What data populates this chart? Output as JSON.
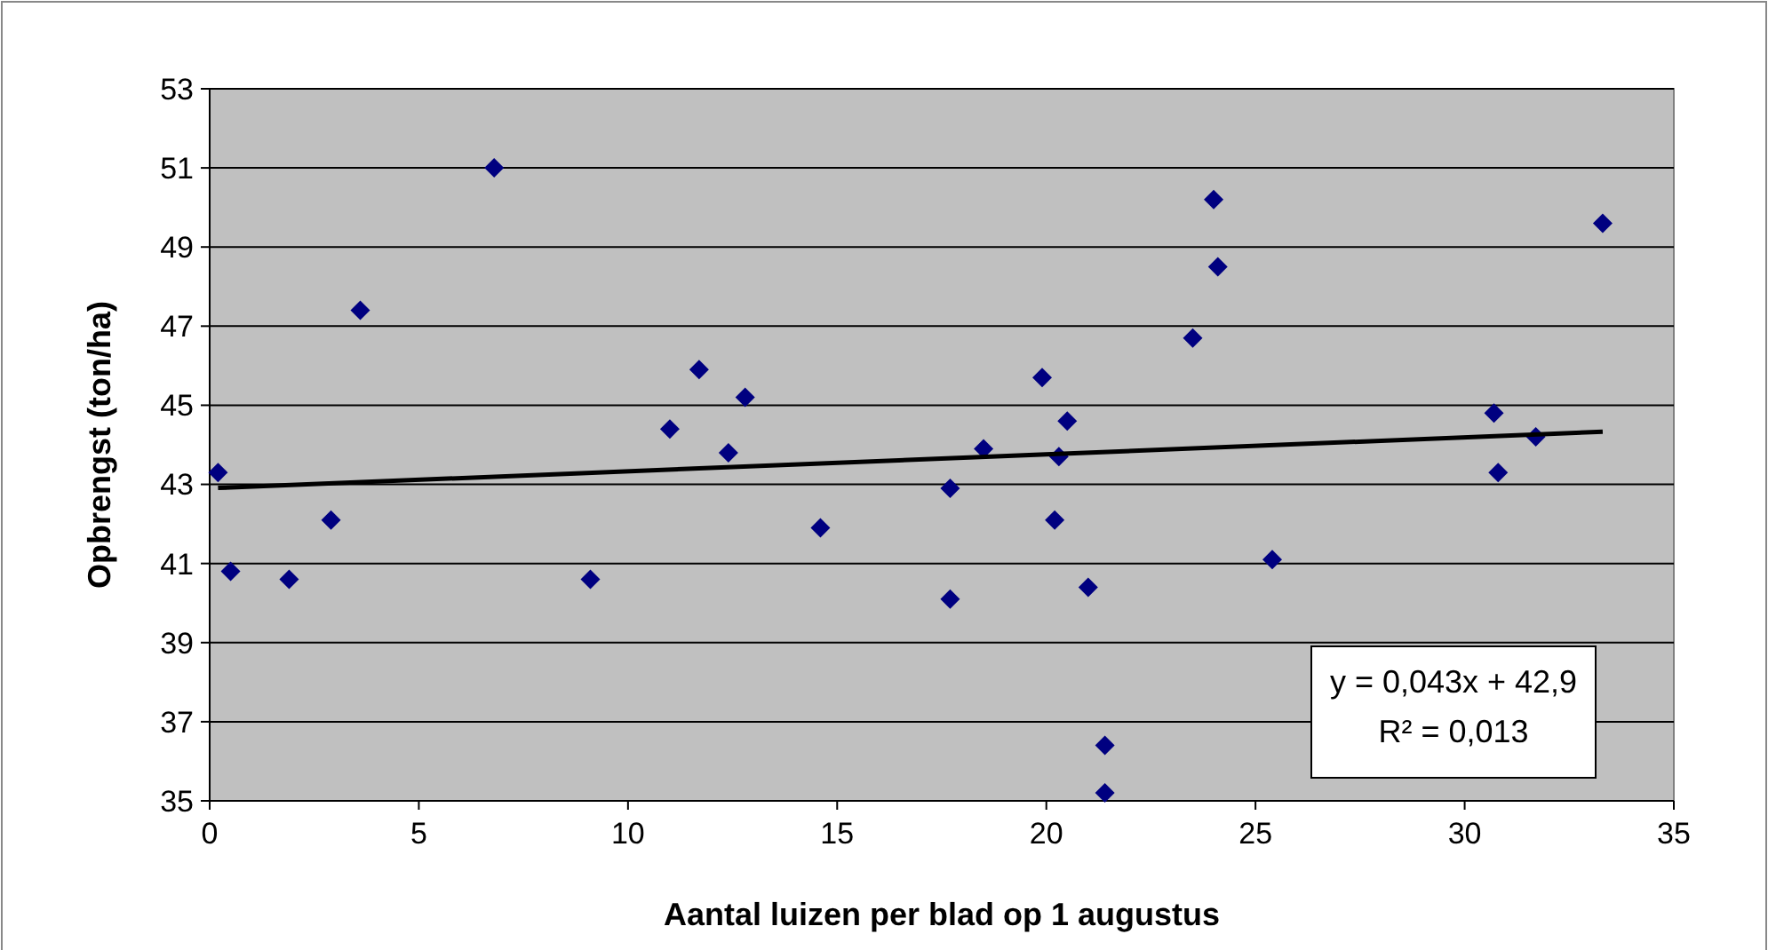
{
  "chart_data": {
    "type": "scatter",
    "xlabel": "Aantal luizen per blad op 1 augustus",
    "ylabel": "Opbrengst (ton/ha)",
    "xlim": [
      0,
      35
    ],
    "xticks": [
      0,
      5,
      10,
      15,
      20,
      25,
      30,
      35
    ],
    "ylim": [
      35,
      53
    ],
    "yticks": [
      35,
      37,
      39,
      41,
      43,
      45,
      47,
      49,
      51,
      53
    ],
    "grid": "y",
    "series": [
      {
        "marker": "diamond",
        "color": "#000080",
        "x": [
          0.2,
          0.5,
          1.9,
          2.9,
          3.6,
          6.8,
          9.1,
          11.0,
          11.7,
          12.4,
          12.8,
          14.6,
          17.7,
          17.7,
          18.5,
          19.9,
          20.3,
          20.2,
          20.5,
          21.0,
          21.4,
          21.4,
          23.5,
          24.0,
          24.1,
          25.4,
          30.7,
          30.8,
          31.7,
          33.3
        ],
        "values": [
          43.3,
          40.8,
          40.6,
          42.1,
          47.4,
          51.0,
          40.6,
          44.4,
          45.9,
          43.8,
          45.2,
          41.9,
          40.1,
          42.9,
          43.9,
          45.7,
          43.7,
          42.1,
          44.6,
          40.4,
          36.4,
          35.2,
          46.7,
          50.2,
          48.5,
          41.1,
          44.8,
          43.3,
          44.2,
          49.6
        ]
      },
      {
        "type": "line",
        "color": "#000000",
        "x": [
          0.2,
          33.3
        ],
        "values": [
          42.91,
          44.33
        ]
      }
    ],
    "annotations": [
      "y = 0,043x + 42,9",
      "R² = 0,013"
    ]
  }
}
